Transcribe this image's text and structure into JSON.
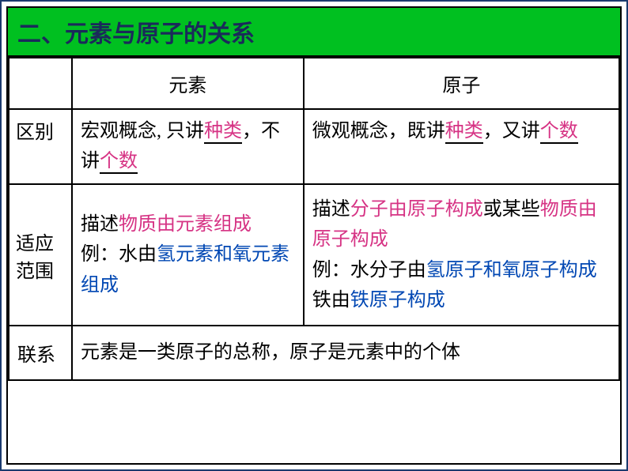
{
  "title": "二、元素与原子的关系",
  "colors": {
    "title_bg": "#00c020",
    "title_text": "#1a2a5a",
    "pink": "#d63384",
    "blue": "#0047b3",
    "black": "#000000",
    "border": "#1a3a6e"
  },
  "table": {
    "headers": {
      "empty": "",
      "col1": "元素",
      "col2": "原子"
    },
    "rows": {
      "diff": {
        "label": "区别",
        "element": {
          "part1": "宏观概念, 只讲",
          "blank1": "种类",
          "part2": "，不讲",
          "blank2": "个数"
        },
        "atom": {
          "part1": "微观概念，既讲",
          "blank1": "种类",
          "part2": "，又讲",
          "blank2": "个数"
        }
      },
      "scope": {
        "label_line1": "适应",
        "label_line2": "范围",
        "element": {
          "line1_black": "描述",
          "line1_pink": "物质由元素组成",
          "line2_black": "例：水由",
          "line2_blue": "氢元素和氧元素组成"
        },
        "atom": {
          "line1_black": "描述",
          "line1_pink1": "分子由原子构成",
          "line1_black2": "或某些",
          "line1_pink2": "物质由原子构成",
          "line2_black": "例：水分子由",
          "line2_blue": "氢原子和氧原子构成",
          "line3_black": "铁由",
          "line3_blue": "铁原子构成"
        }
      },
      "relation": {
        "label": "联系",
        "text": "元素是一类原子的总称，原子是元素中的个体"
      }
    }
  }
}
